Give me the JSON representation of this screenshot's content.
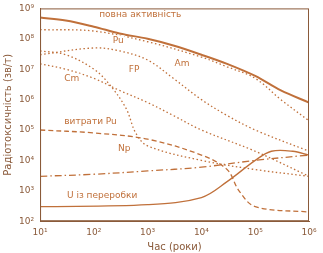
{
  "chart_data": {
    "type": "line",
    "x_label": "Час (роки)",
    "y_label": "Радіотоксичність (зв/т)",
    "log": true,
    "grid": false,
    "xlim": [
      10,
      1000000
    ],
    "ylim": [
      100,
      1000000000
    ],
    "xticks": [
      {
        "value": 10,
        "label": "10¹"
      },
      {
        "value": 100,
        "label": "10²"
      },
      {
        "value": 1000,
        "label": "10³"
      },
      {
        "value": 10000,
        "label": "10⁴"
      },
      {
        "value": 100000,
        "label": "10⁵"
      },
      {
        "value": 1000000,
        "label": "10⁶"
      }
    ],
    "yticks": [
      {
        "value": 100,
        "label": "10²"
      },
      {
        "value": 1000,
        "label": "10³"
      },
      {
        "value": 10000,
        "label": "10⁴"
      },
      {
        "value": 100000,
        "label": "10⁵"
      },
      {
        "value": 1000000,
        "label": "10⁶"
      },
      {
        "value": 10000000,
        "label": "10⁷"
      },
      {
        "value": 100000000,
        "label": "10⁸"
      },
      {
        "value": 1000000000,
        "label": "10⁹"
      }
    ],
    "series": [
      {
        "name": "повна активність",
        "color": "#c0703a",
        "line_style": "solid",
        "x": [
          10,
          30,
          100,
          300,
          1000,
          3000,
          10000,
          30000,
          100000,
          300000,
          1000000
        ],
        "values": [
          500000000,
          400000000,
          250000000,
          150000000,
          100000000,
          60000000,
          30000000,
          15000000,
          6000000,
          2000000,
          800000
        ]
      },
      {
        "name": "Pu",
        "color": "#c0703a",
        "line_style": "dotted",
        "x": [
          10,
          100,
          1000,
          10000,
          30000,
          100000,
          300000,
          1000000
        ],
        "values": [
          200000000,
          180000000,
          80000000,
          25000000,
          12000000,
          5000000,
          1000000,
          200000
        ]
      },
      {
        "name": "Am",
        "color": "#c0703a",
        "line_style": "dotted",
        "x": [
          10,
          100,
          300,
          1000,
          3000,
          10000,
          30000,
          100000,
          1000000
        ],
        "values": [
          30000000,
          50000000,
          40000000,
          20000000,
          5000000,
          1000000,
          300000,
          100000,
          20000
        ]
      },
      {
        "name": "Cm",
        "color": "#c0703a",
        "line_style": "dotted",
        "x": [
          10,
          30,
          100,
          300,
          1000,
          3000,
          10000,
          100000,
          1000000
        ],
        "values": [
          15000000,
          10000000,
          5000000,
          2000000,
          800000,
          300000,
          100000,
          20000,
          3000
        ]
      },
      {
        "name": "FP",
        "color": "#c0703a",
        "line_style": "dotted",
        "x": [
          10,
          30,
          100,
          200,
          400,
          600,
          1000,
          10000,
          100000,
          1000000
        ],
        "values": [
          40000000,
          30000000,
          10000000,
          3000000,
          500000,
          80000,
          30000,
          10000,
          5000,
          3000
        ]
      },
      {
        "name": "витрати Pu",
        "color": "#c0703a",
        "line_style": "dashed",
        "x": [
          10,
          100,
          1000,
          10000,
          30000,
          50000,
          100000,
          1000000
        ],
        "values": [
          100000,
          80000,
          50000,
          15000,
          5000,
          1000,
          300,
          200
        ]
      },
      {
        "name": "Np",
        "color": "#c0703a",
        "line_style": "dashdot",
        "x": [
          10,
          100,
          1000,
          10000,
          100000,
          1000000
        ],
        "values": [
          3000,
          3500,
          4500,
          6000,
          10000,
          15000
        ]
      },
      {
        "name": "U із переробки",
        "color": "#c0703a",
        "line_style": "solid",
        "x": [
          10,
          1000,
          10000,
          30000,
          100000,
          200000,
          500000,
          1000000
        ],
        "values": [
          300,
          350,
          600,
          2000,
          10000,
          20000,
          20000,
          15000
        ]
      }
    ]
  }
}
